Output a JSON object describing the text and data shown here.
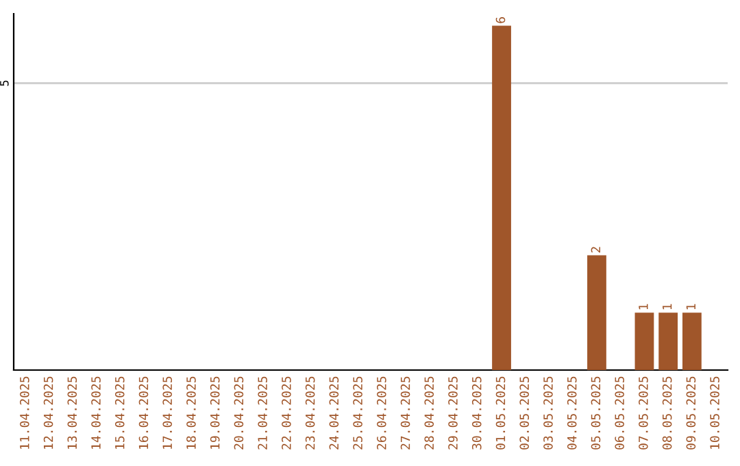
{
  "chart_data": {
    "type": "bar",
    "categories": [
      "11.04.2025",
      "12.04.2025",
      "13.04.2025",
      "14.04.2025",
      "15.04.2025",
      "16.04.2025",
      "17.04.2025",
      "18.04.2025",
      "19.04.2025",
      "20.04.2025",
      "21.04.2025",
      "22.04.2025",
      "23.04.2025",
      "24.04.2025",
      "25.04.2025",
      "26.04.2025",
      "27.04.2025",
      "28.04.2025",
      "29.04.2025",
      "30.04.2025",
      "01.05.2025",
      "02.05.2025",
      "03.05.2025",
      "04.05.2025",
      "05.05.2025",
      "06.05.2025",
      "07.05.2025",
      "08.05.2025",
      "09.05.2025",
      "10.05.2025"
    ],
    "values": [
      null,
      null,
      null,
      null,
      null,
      null,
      null,
      null,
      null,
      null,
      null,
      null,
      null,
      null,
      null,
      null,
      null,
      null,
      null,
      null,
      6,
      null,
      null,
      null,
      2,
      null,
      1,
      1,
      1,
      null
    ],
    "value_labels": [
      null,
      null,
      null,
      null,
      null,
      null,
      null,
      null,
      null,
      null,
      null,
      null,
      null,
      null,
      null,
      null,
      null,
      null,
      null,
      null,
      "6",
      null,
      null,
      null,
      "2",
      null,
      "1",
      "1",
      "1",
      null
    ],
    "ref_lines": [
      {
        "axis": "y",
        "value": 5,
        "label": "5",
        "color": "#cccccc"
      }
    ],
    "color": "#a0562a"
  }
}
